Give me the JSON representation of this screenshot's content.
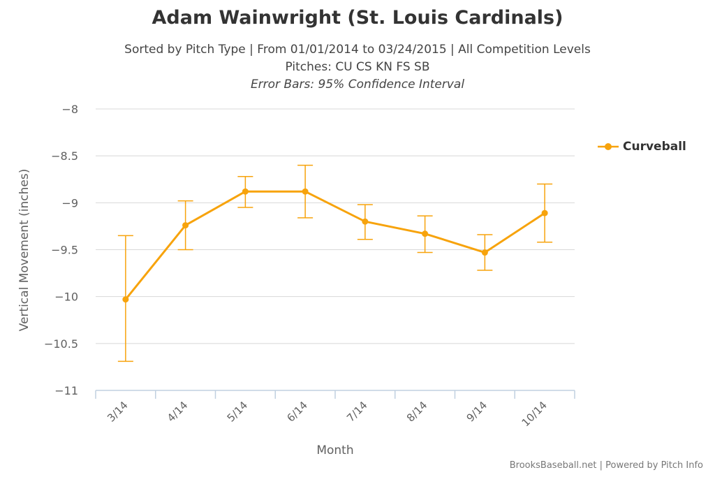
{
  "title": "Adam Wainwright (St. Louis Cardinals)",
  "subtitle_line1": "Sorted by Pitch Type | From 01/01/2014 to 03/24/2015 | All Competition Levels",
  "subtitle_line2": "Pitches: CU CS KN FS SB",
  "subtitle_line3": "Error Bars: 95% Confidence Interval",
  "credits": "BrooksBaseball.net | Powered by Pitch Info",
  "colors": {
    "series": "#f7a30c",
    "grid": "#d8d8d8",
    "axis": "#c0d0e0",
    "text": "#606060"
  },
  "chart_data": {
    "type": "line",
    "xlabel": "Month",
    "ylabel": "Vertical Movement (inches)",
    "categories": [
      "3/14",
      "4/14",
      "5/14",
      "6/14",
      "7/14",
      "8/14",
      "9/14",
      "10/14"
    ],
    "ylim": [
      -11,
      -8
    ],
    "yticks": [
      "-8",
      "-8.5",
      "-9",
      "-9.5",
      "-10",
      "-10.5",
      "-11"
    ],
    "grid": true,
    "legend_position": "right",
    "error_bars": "95% Confidence Interval",
    "series": [
      {
        "name": "Curveball",
        "values": [
          -10.03,
          -9.24,
          -8.88,
          -8.88,
          -9.2,
          -9.33,
          -9.53,
          -9.11
        ],
        "lower": [
          -10.69,
          -9.5,
          -9.05,
          -9.16,
          -9.39,
          -9.53,
          -9.72,
          -9.42
        ],
        "upper": [
          -9.35,
          -8.98,
          -8.72,
          -8.6,
          -9.02,
          -9.14,
          -9.34,
          -8.8
        ]
      }
    ]
  }
}
